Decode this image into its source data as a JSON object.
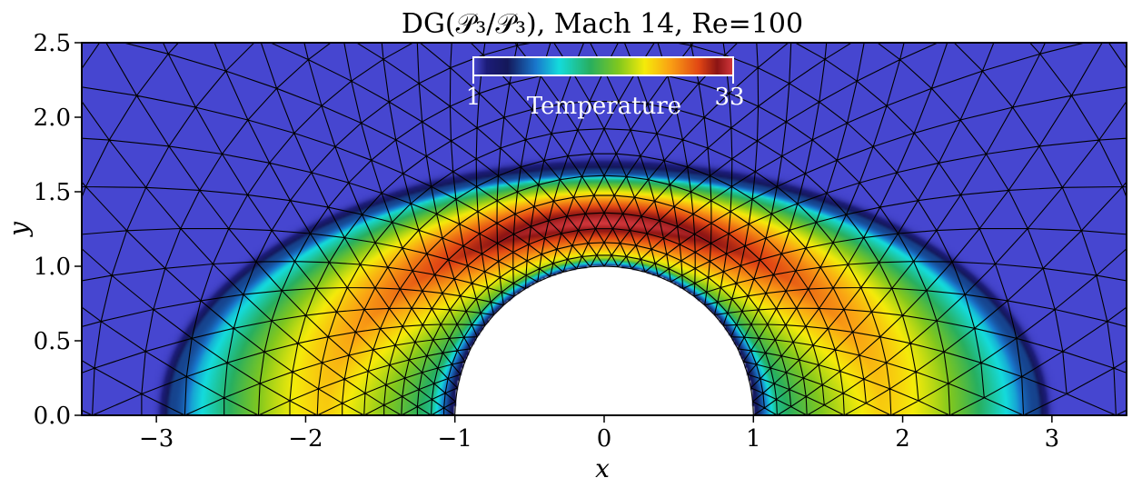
{
  "chart_data": {
    "type": "heatmap",
    "title": "DG(𝒫₃/𝒫₃), Mach 14, Re=100",
    "xlabel": "x",
    "ylabel": "y",
    "xlim": [
      -3.5,
      3.5
    ],
    "ylim": [
      0.0,
      2.5
    ],
    "x_ticks": [
      -3,
      -2,
      -1,
      0,
      1,
      2,
      3
    ],
    "x_tick_labels": [
      "−3",
      "−2",
      "−1",
      "0",
      "1",
      "2",
      "3"
    ],
    "y_ticks": [
      0.0,
      0.5,
      1.0,
      1.5,
      2.0,
      2.5
    ],
    "y_tick_labels": [
      "0.0",
      "0.5",
      "1.0",
      "1.5",
      "2.0",
      "2.5"
    ],
    "grid": false,
    "field": {
      "name": "Temperature",
      "range": [
        1,
        33
      ],
      "colormap": "turbo",
      "freestream_value": 1,
      "body_radius": 1.0,
      "shock_standoff_y": 1.63,
      "shock_x_extent": 2.9,
      "peak_value": 33
    },
    "colorbar": {
      "label": "Temperature",
      "min_label": "1",
      "max_label": "33",
      "location": "top-center"
    },
    "mesh": {
      "type": "triangulated",
      "line_color": "#000000",
      "radial_lines": 34,
      "circular_layers": 22,
      "layer_radius_growth": 1.12
    },
    "colors": {
      "freestream": "#4646d0",
      "body": "#ffffff"
    }
  }
}
